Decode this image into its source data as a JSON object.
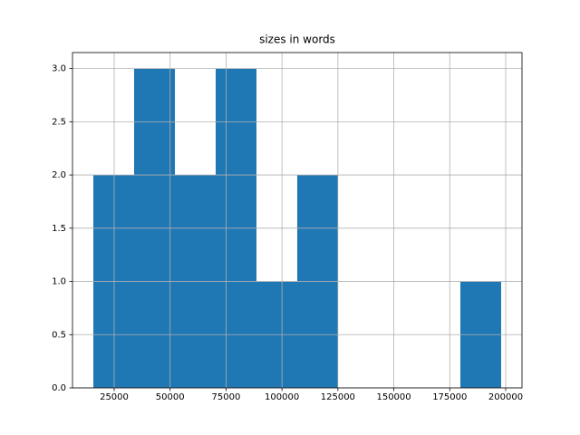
{
  "chart_data": {
    "type": "histogram",
    "title": "sizes in words",
    "bins": [
      15683,
      33912,
      52141,
      70370,
      88599,
      106828,
      125057,
      143286,
      161515,
      179744,
      197973
    ],
    "values": [
      2,
      3,
      2,
      3,
      1,
      2,
      0,
      0,
      0,
      1
    ],
    "color": "#1f77b4",
    "xlim": [
      6367,
      207291
    ],
    "xticks": [
      25000,
      50000,
      75000,
      100000,
      125000,
      150000,
      175000,
      200000
    ],
    "ylim": [
      0,
      3.15
    ],
    "yticks": [
      {
        "value": 0,
        "label": "0.0"
      },
      {
        "value": 0.5,
        "label": "0.5"
      },
      {
        "value": 1,
        "label": "1.0"
      },
      {
        "value": 1.5,
        "label": "1.5"
      },
      {
        "value": 2,
        "label": "2.0"
      },
      {
        "value": 2.5,
        "label": "2.5"
      },
      {
        "value": 3,
        "label": "3.0"
      }
    ],
    "grid": true
  }
}
